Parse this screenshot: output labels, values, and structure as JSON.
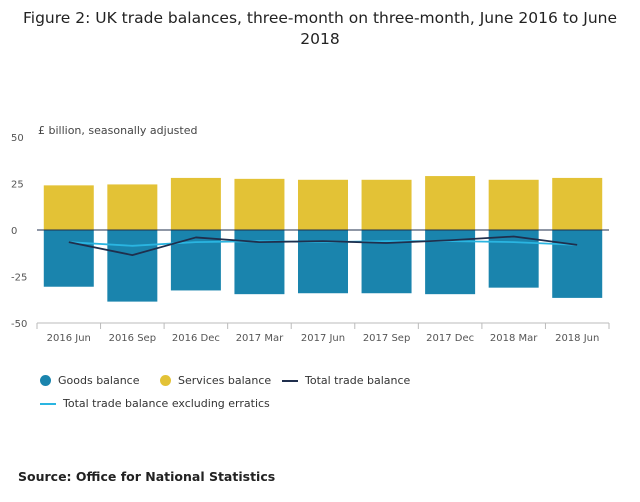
{
  "title": "Figure 2: UK trade balances, three-month on three-month, June 2016 to June 2018",
  "source": "Source: Office for National Statistics",
  "colors": {
    "goods": "#1a84ad",
    "services": "#e3c236",
    "total": "#1f2f4d",
    "excl": "#2ab5e1"
  },
  "legend": {
    "goods": "Goods balance",
    "services": "Services balance",
    "total": "Total trade balance",
    "excl": "Total trade balance excluding erratics"
  },
  "chart_data": {
    "type": "bar",
    "ylabel": "£ billion, seasonally adjusted",
    "ylim": [
      -50,
      50
    ],
    "yticks": [
      50,
      25,
      0,
      -25,
      -50
    ],
    "categories": [
      "2016 Jun",
      "2016 Sep",
      "2016 Dec",
      "2017 Mar",
      "2017 Jun",
      "2017 Sep",
      "2017 Dec",
      "2018 Mar",
      "2018 Jun"
    ],
    "series": [
      {
        "name": "Goods balance",
        "values": [
          -30.5,
          -38.5,
          -32.5,
          -34.5,
          -34,
          -34,
          -34.5,
          -31,
          -36.5
        ]
      },
      {
        "name": "Services balance",
        "values": [
          24,
          24.5,
          28,
          27.5,
          27,
          27,
          29,
          27,
          28
        ]
      },
      {
        "name": "Total trade balance",
        "values": [
          -6.5,
          -13.5,
          -4,
          -6.5,
          -6,
          -7,
          -5.5,
          -3.5,
          -8
        ]
      },
      {
        "name": "Total trade balance excluding erratics",
        "values": [
          -6.5,
          -8.5,
          -6.5,
          -6,
          -6.5,
          -6,
          -6,
          -6.5,
          -8
        ]
      }
    ],
    "grid": false,
    "legend_position": "bottom"
  }
}
